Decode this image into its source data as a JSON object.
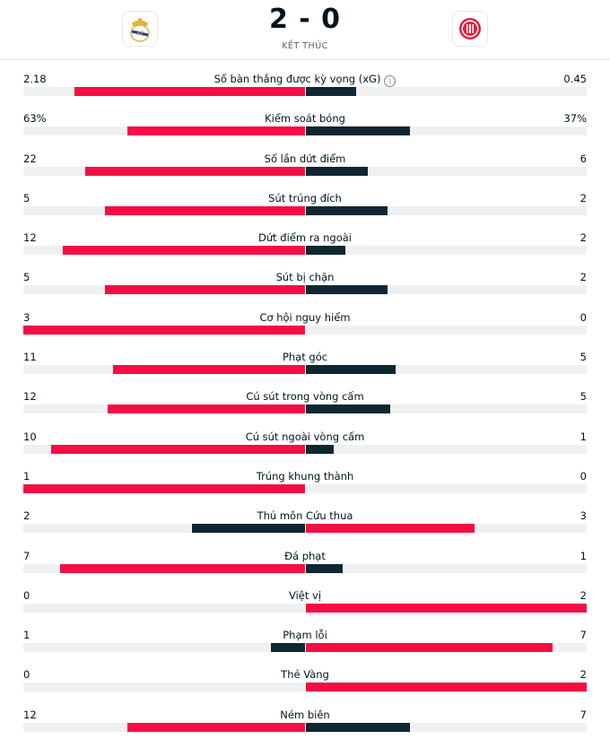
{
  "match": {
    "score": "2 - 0",
    "status": "KẾT THÚC",
    "home_team": {
      "crest_icon": "real-madrid-crest-icon"
    },
    "away_team": {
      "crest_icon": "girona-crest-icon"
    }
  },
  "colors": {
    "highlight": "#f40e43",
    "secondary": "#0f2733",
    "track": "#eef0f2"
  },
  "stats": [
    {
      "label": "Số bàn thắng được kỳ vọng (xG)",
      "home": "2.18",
      "away": "0.45",
      "home_frac": 0.82,
      "away_frac": 0.18,
      "home_red": true,
      "info": true
    },
    {
      "label": "Kiểm soát bóng",
      "home": "63%",
      "away": "37%",
      "home_frac": 0.63,
      "away_frac": 0.37,
      "home_red": true
    },
    {
      "label": "Số lần dứt điểm",
      "home": "22",
      "away": "6",
      "home_frac": 0.78,
      "away_frac": 0.22,
      "home_red": true
    },
    {
      "label": "Sút trúng đích",
      "home": "5",
      "away": "2",
      "home_frac": 0.71,
      "away_frac": 0.29,
      "home_red": true
    },
    {
      "label": "Dứt điểm ra ngoài",
      "home": "12",
      "away": "2",
      "home_frac": 0.86,
      "away_frac": 0.14,
      "home_red": true
    },
    {
      "label": "Sút bị chặn",
      "home": "5",
      "away": "2",
      "home_frac": 0.71,
      "away_frac": 0.29,
      "home_red": true
    },
    {
      "label": "Cơ hội nguy hiểm",
      "home": "3",
      "away": "0",
      "home_frac": 1.0,
      "away_frac": 0.0,
      "home_red": true
    },
    {
      "label": "Phạt góc",
      "home": "11",
      "away": "5",
      "home_frac": 0.68,
      "away_frac": 0.32,
      "home_red": true
    },
    {
      "label": "Cú sút trong vòng cấm",
      "home": "12",
      "away": "5",
      "home_frac": 0.7,
      "away_frac": 0.3,
      "home_red": true
    },
    {
      "label": "Cú sút ngoài vòng cấm",
      "home": "10",
      "away": "1",
      "home_frac": 0.9,
      "away_frac": 0.1,
      "home_red": true
    },
    {
      "label": "Trúng khung thành",
      "home": "1",
      "away": "0",
      "home_frac": 1.0,
      "away_frac": 0.0,
      "home_red": true
    },
    {
      "label": "Thủ môn Cứu thua",
      "home": "2",
      "away": "3",
      "home_frac": 0.4,
      "away_frac": 0.6,
      "home_red": false
    },
    {
      "label": "Đá phạt",
      "home": "7",
      "away": "1",
      "home_frac": 0.87,
      "away_frac": 0.13,
      "home_red": true
    },
    {
      "label": "Việt vị",
      "home": "0",
      "away": "2",
      "home_frac": 0.0,
      "away_frac": 1.0,
      "home_red": false
    },
    {
      "label": "Phạm lỗi",
      "home": "1",
      "away": "7",
      "home_frac": 0.12,
      "away_frac": 0.88,
      "home_red": false
    },
    {
      "label": "Thẻ Vàng",
      "home": "0",
      "away": "2",
      "home_frac": 0.0,
      "away_frac": 1.0,
      "home_red": false
    },
    {
      "label": "Ném biên",
      "home": "12",
      "away": "7",
      "home_frac": 0.63,
      "away_frac": 0.37,
      "home_red": true
    }
  ]
}
